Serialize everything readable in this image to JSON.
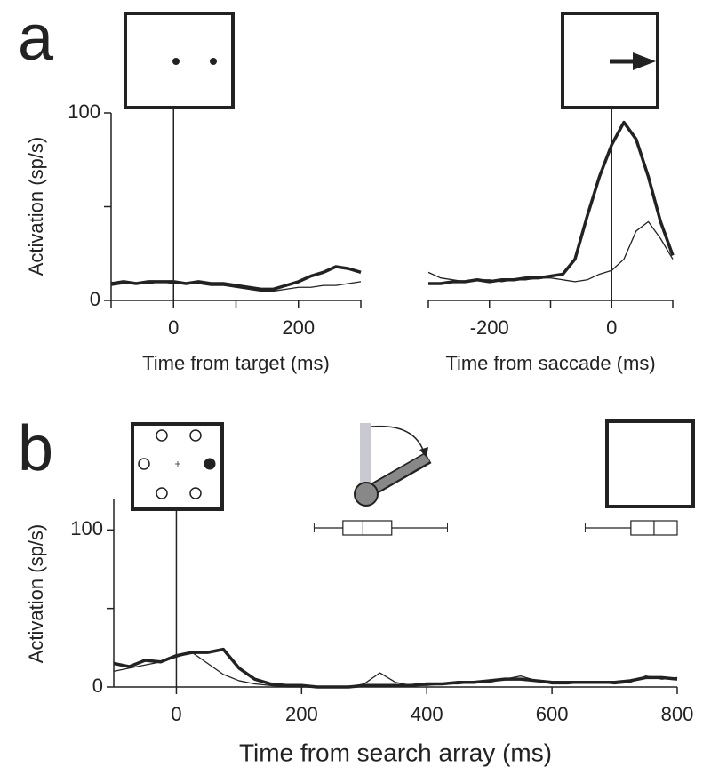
{
  "chart_data": [
    {
      "type": "line",
      "panel_label": "a",
      "ylabel": "Activation (sp/s)",
      "xlabel": "Time from target (ms)",
      "x": [
        -100,
        -80,
        -60,
        -40,
        -20,
        0,
        20,
        40,
        60,
        80,
        100,
        120,
        140,
        160,
        180,
        200,
        220,
        240,
        260,
        280,
        300
      ],
      "series": [
        {
          "color": "#222222",
          "width": 3.5,
          "values": [
            9,
            10,
            9,
            10,
            10,
            10,
            9,
            10,
            9,
            9,
            8,
            7,
            6,
            6,
            8,
            10,
            13,
            15,
            18,
            17,
            15
          ]
        },
        {
          "color": "#222222",
          "width": 1.3,
          "values": [
            8,
            9,
            9,
            9,
            10,
            9,
            9,
            9,
            8,
            8,
            7,
            6,
            5,
            5,
            6,
            7,
            7,
            8,
            8,
            9,
            10
          ]
        }
      ],
      "xlim": [
        -100,
        300
      ],
      "xticks": [
        0,
        200
      ],
      "minor_xticks": [
        -100,
        100,
        300
      ],
      "ylim": [
        0,
        100
      ],
      "yticks": [
        0,
        100
      ],
      "minor_yticks": [
        50
      ],
      "show_yaxis": true,
      "marker_x": 0
    },
    {
      "type": "line",
      "xlabel": "Time from saccade (ms)",
      "x": [
        -300,
        -280,
        -260,
        -240,
        -220,
        -200,
        -180,
        -160,
        -140,
        -120,
        -100,
        -80,
        -60,
        -40,
        -20,
        0,
        20,
        40,
        60,
        80,
        100
      ],
      "series": [
        {
          "color": "#222222",
          "width": 3.5,
          "values": [
            9,
            9,
            10,
            10,
            11,
            10,
            11,
            11,
            12,
            12,
            13,
            14,
            22,
            45,
            66,
            83,
            95,
            86,
            66,
            42,
            24
          ]
        },
        {
          "color": "#222222",
          "width": 1.3,
          "values": [
            15,
            12,
            11,
            10,
            11,
            11,
            10,
            11,
            11,
            12,
            12,
            11,
            10,
            11,
            14,
            16,
            22,
            37,
            42,
            33,
            22
          ]
        }
      ],
      "xlim": [
        -300,
        100
      ],
      "xticks": [
        -200,
        0
      ],
      "minor_xticks": [
        -300,
        -100,
        100
      ],
      "ylim": [
        0,
        100
      ],
      "yticks": [],
      "minor_yticks": [],
      "show_yaxis": false,
      "marker_x": 0
    },
    {
      "type": "line",
      "panel_label": "b",
      "ylabel": "Activation (sp/s)",
      "xlabel": "Time from search array (ms)",
      "x": [
        -100,
        -75,
        -50,
        -25,
        0,
        25,
        50,
        75,
        100,
        125,
        150,
        175,
        200,
        225,
        250,
        275,
        300,
        325,
        350,
        375,
        400,
        425,
        450,
        475,
        500,
        525,
        550,
        575,
        600,
        625,
        650,
        675,
        700,
        725,
        750,
        775,
        800
      ],
      "series": [
        {
          "color": "#222222",
          "width": 3.5,
          "values": [
            15,
            13,
            17,
            16,
            20,
            22,
            22,
            24,
            12,
            5,
            2,
            1,
            1,
            0,
            0,
            0,
            1,
            1,
            1,
            1,
            2,
            2,
            3,
            3,
            4,
            5,
            5,
            4,
            3,
            3,
            3,
            3,
            3,
            4,
            6,
            6,
            5
          ]
        },
        {
          "color": "#222222",
          "width": 1.3,
          "values": [
            10,
            12,
            14,
            16,
            19,
            22,
            15,
            8,
            4,
            2,
            1,
            0,
            0,
            0,
            0,
            0,
            2,
            9,
            3,
            1,
            1,
            2,
            2,
            3,
            3,
            5,
            7,
            4,
            2,
            2,
            3,
            3,
            2,
            3,
            7,
            5,
            6
          ]
        }
      ],
      "boxes": [
        {
          "whisker_low": 220,
          "q1": 266,
          "median": 298,
          "q3": 344,
          "whisker_high": 433
        },
        {
          "whisker_low": 653,
          "q1": 726,
          "median": 763,
          "q3": 800,
          "whisker_high": 800
        }
      ],
      "xlim": [
        -100,
        800
      ],
      "xticks": [
        0,
        200,
        400,
        600,
        800
      ],
      "minor_xticks": [],
      "ylim": [
        0,
        120
      ],
      "yticks": [
        0,
        100
      ],
      "minor_yticks": [
        50
      ],
      "show_yaxis": true,
      "marker_x": 0
    }
  ]
}
